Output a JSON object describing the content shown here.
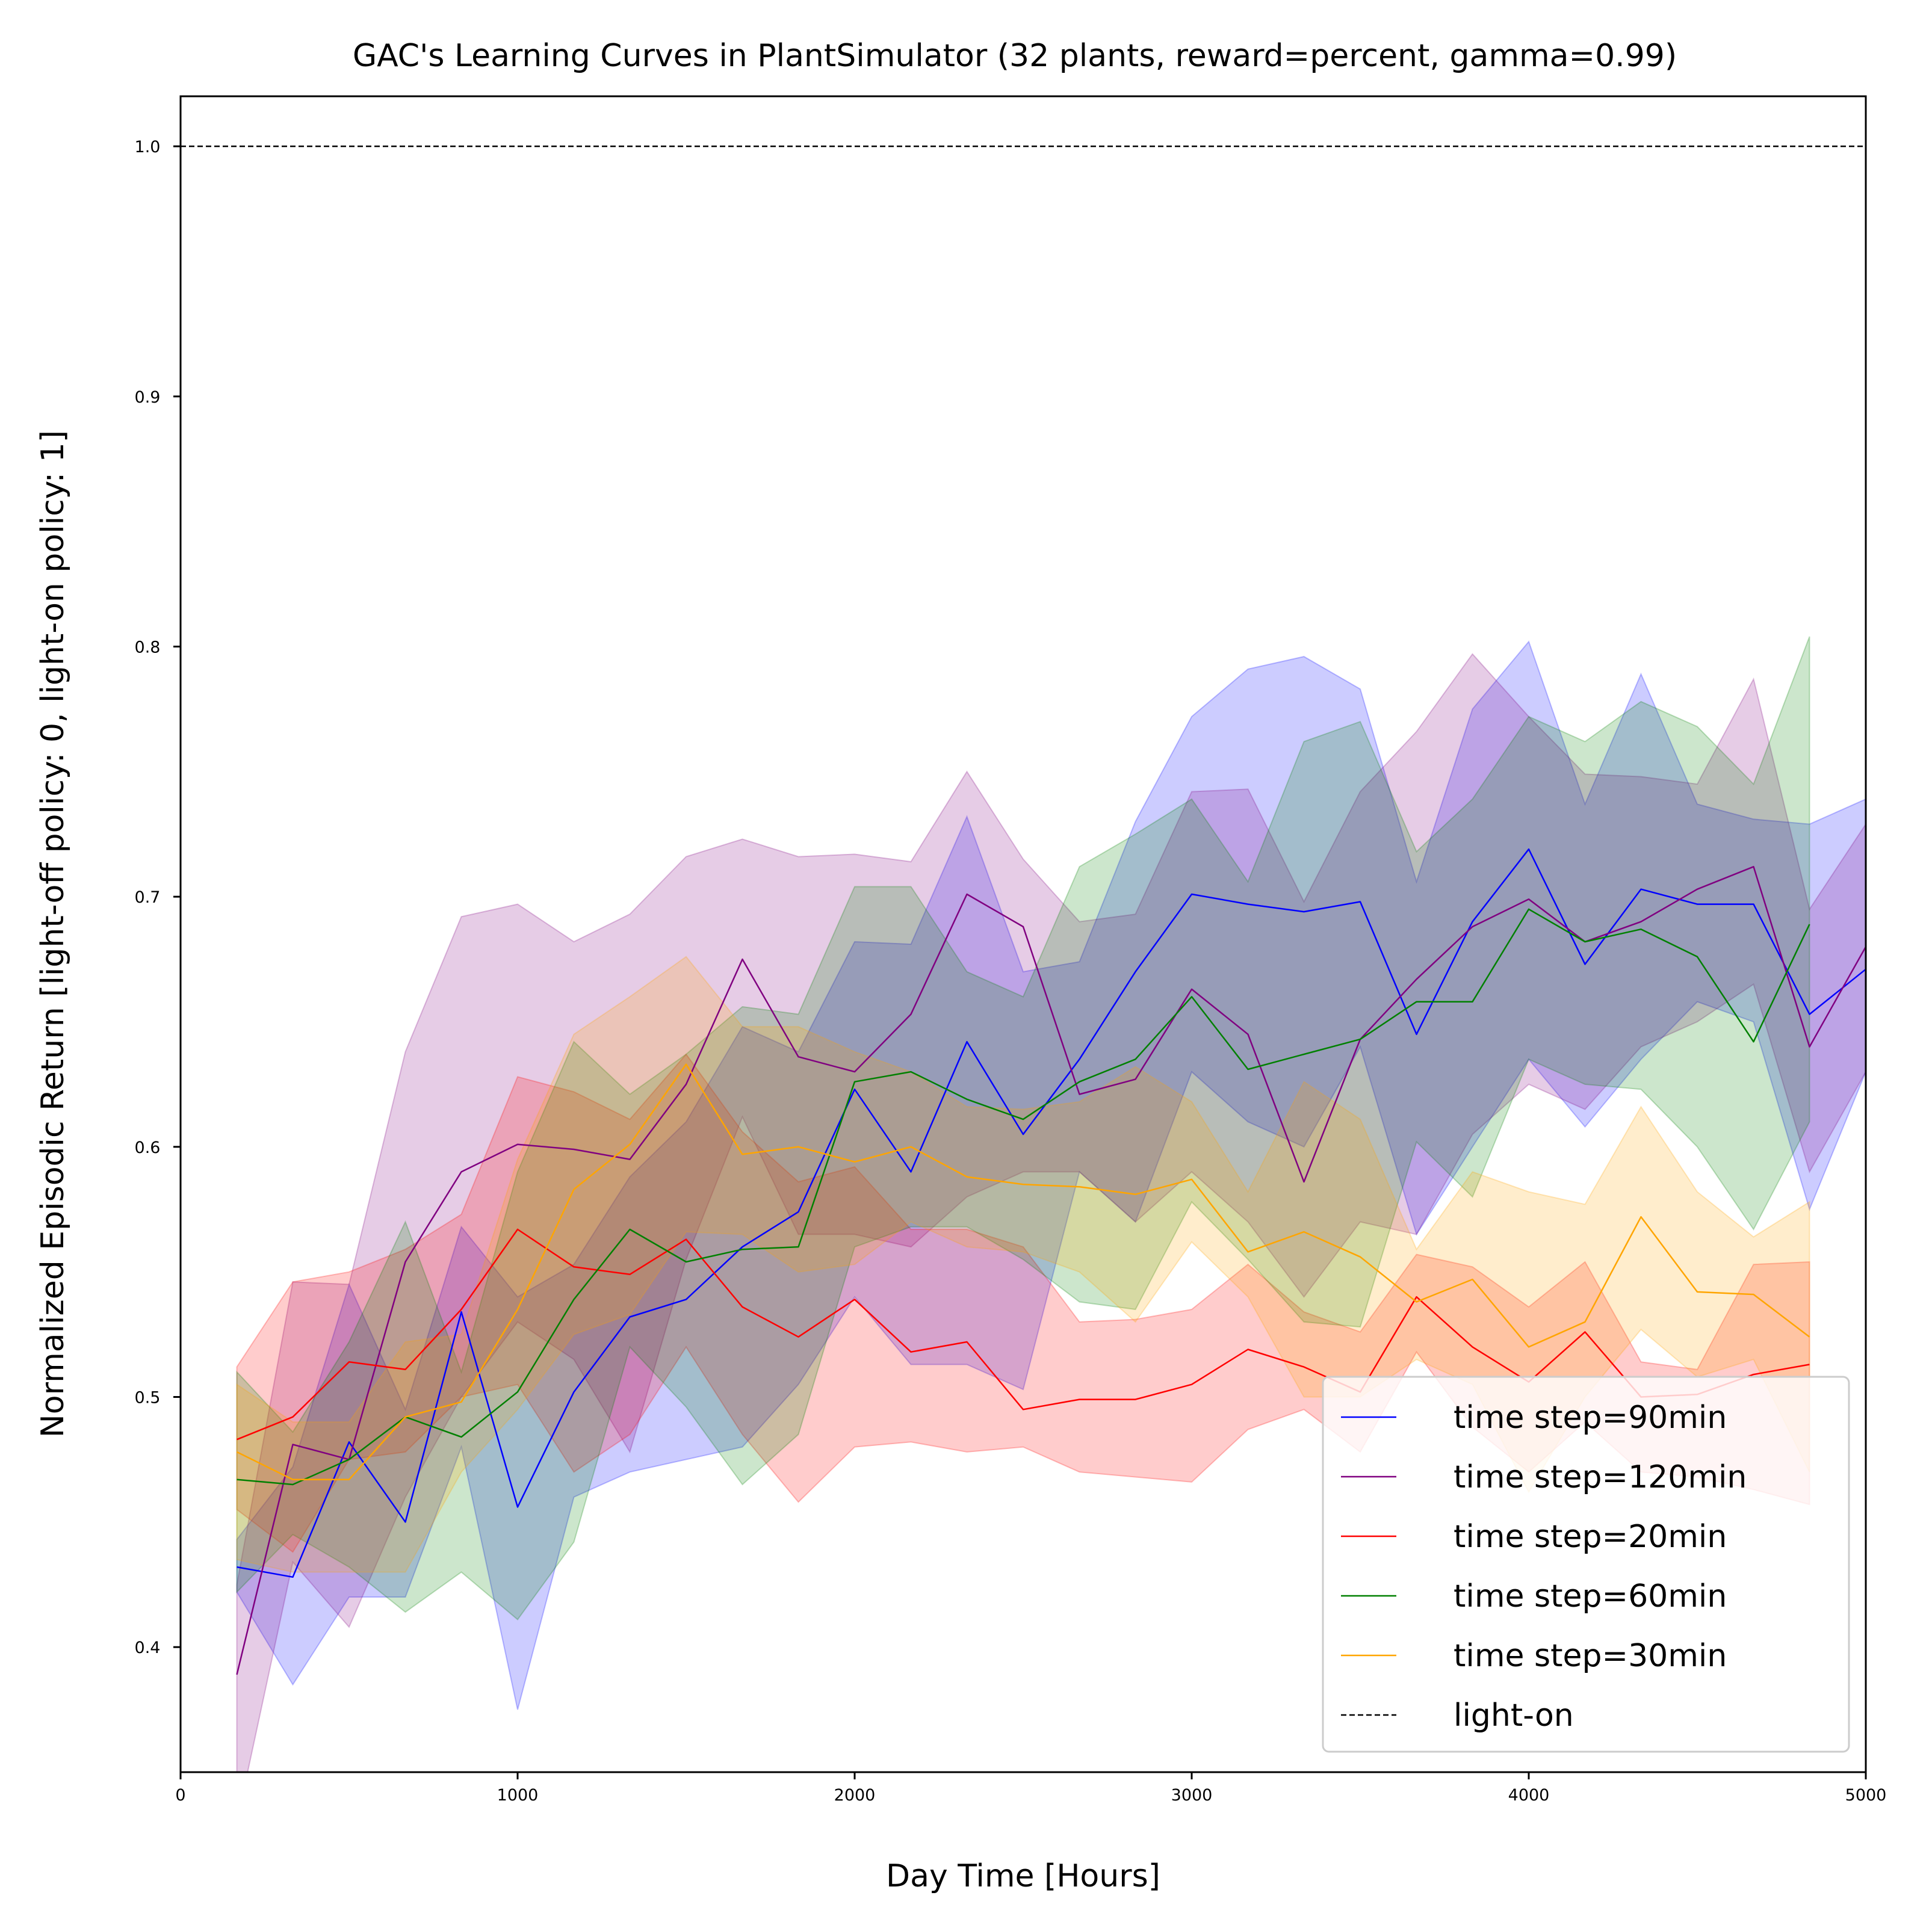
{
  "chart_data": {
    "type": "line",
    "title": "GAC's Learning Curves in PlantSimulator (32 plants, reward=percent, gamma=0.99)",
    "xlabel": "Day Time [Hours]",
    "ylabel": "Normalized Episodic Return [light-off policy: 0, light-on policy: 1]",
    "xlim": [
      0,
      5000
    ],
    "ylim": [
      0.35,
      1.02
    ],
    "xticks": [
      0,
      1000,
      2000,
      3000,
      4000,
      5000
    ],
    "xtick_labels": [
      "0",
      "1000",
      "2000",
      "3000",
      "4000",
      "5000"
    ],
    "yticks": [
      0.4,
      0.5,
      0.6,
      0.7,
      0.8,
      0.9,
      1.0
    ],
    "ytick_labels": [
      "0.4",
      "0.5",
      "0.6",
      "0.7",
      "0.8",
      "0.9",
      "1.0"
    ],
    "grid": false,
    "legend_position": "lower-right",
    "reference_line": {
      "name": "light-on",
      "y": 1.0,
      "color": "#000000",
      "style": "dashed"
    },
    "series": [
      {
        "name": "time step=90min",
        "color": "#0000ff",
        "x": [
          167,
          333,
          500,
          667,
          833,
          1000,
          1167,
          1333,
          1500,
          1667,
          1833,
          2000,
          2167,
          2333,
          2500,
          2667,
          2833,
          3000,
          3167,
          3333,
          3500,
          3667,
          3833,
          4000,
          4167,
          4333,
          4500,
          4667,
          4833,
          5000
        ],
        "y": [
          0.432,
          0.428,
          0.482,
          0.45,
          0.534,
          0.456,
          0.502,
          0.532,
          0.539,
          0.56,
          0.574,
          0.623,
          0.59,
          0.642,
          0.605,
          0.635,
          0.67,
          0.701,
          0.697,
          0.694,
          0.698,
          0.645,
          0.69,
          0.719,
          0.673,
          0.703,
          0.697,
          0.697,
          0.653,
          0.671
        ],
        "lower": [
          0.422,
          0.385,
          0.42,
          0.42,
          0.48,
          0.375,
          0.46,
          0.47,
          0.475,
          0.48,
          0.505,
          0.54,
          0.513,
          0.513,
          0.503,
          0.59,
          0.57,
          0.63,
          0.61,
          0.6,
          0.64,
          0.565,
          0.6,
          0.635,
          0.608,
          0.635,
          0.658,
          0.65,
          0.575,
          0.63
        ],
        "upper": [
          0.443,
          0.472,
          0.545,
          0.495,
          0.568,
          0.54,
          0.553,
          0.588,
          0.61,
          0.648,
          0.638,
          0.682,
          0.681,
          0.732,
          0.67,
          0.674,
          0.73,
          0.772,
          0.791,
          0.796,
          0.783,
          0.706,
          0.775,
          0.802,
          0.737,
          0.789,
          0.737,
          0.731,
          0.729,
          0.739
        ]
      },
      {
        "name": "time step=120min",
        "color": "#800080",
        "x": [
          167,
          333,
          500,
          667,
          833,
          1000,
          1167,
          1333,
          1500,
          1667,
          1833,
          2000,
          2167,
          2333,
          2500,
          2667,
          2833,
          3000,
          3167,
          3333,
          3500,
          3667,
          3833,
          4000,
          4167,
          4333,
          4500,
          4667,
          4833,
          5000
        ],
        "y": [
          0.389,
          0.481,
          0.475,
          0.554,
          0.59,
          0.601,
          0.599,
          0.595,
          0.625,
          0.675,
          0.636,
          0.63,
          0.653,
          0.701,
          0.688,
          0.621,
          0.627,
          0.663,
          0.645,
          0.586,
          0.643,
          0.667,
          0.688,
          0.699,
          0.682,
          0.69,
          0.703,
          0.712,
          0.64,
          0.68
        ],
        "lower": [
          0.33,
          0.434,
          0.408,
          0.46,
          0.5,
          0.53,
          0.515,
          0.478,
          0.555,
          0.612,
          0.565,
          0.565,
          0.56,
          0.58,
          0.59,
          0.59,
          0.57,
          0.59,
          0.57,
          0.54,
          0.57,
          0.565,
          0.605,
          0.625,
          0.615,
          0.64,
          0.65,
          0.665,
          0.59,
          0.63
        ],
        "upper": [
          0.425,
          0.546,
          0.545,
          0.638,
          0.692,
          0.697,
          0.682,
          0.693,
          0.716,
          0.723,
          0.716,
          0.717,
          0.714,
          0.75,
          0.715,
          0.69,
          0.693,
          0.742,
          0.743,
          0.698,
          0.742,
          0.766,
          0.797,
          0.772,
          0.749,
          0.748,
          0.745,
          0.787,
          0.695,
          0.729
        ]
      },
      {
        "name": "time step=20min",
        "color": "#ff0000",
        "x": [
          167,
          333,
          500,
          667,
          833,
          1000,
          1167,
          1333,
          1500,
          1667,
          1833,
          2000,
          2167,
          2333,
          2500,
          2667,
          2833,
          3000,
          3167,
          3333,
          3500,
          3667,
          3833,
          4000,
          4167,
          4333,
          4500,
          4667,
          4833
        ],
        "y": [
          0.483,
          0.492,
          0.514,
          0.511,
          0.535,
          0.567,
          0.552,
          0.549,
          0.563,
          0.536,
          0.524,
          0.539,
          0.518,
          0.522,
          0.495,
          0.499,
          0.499,
          0.505,
          0.519,
          0.512,
          0.502,
          0.54,
          0.52,
          0.506,
          0.526,
          0.5,
          0.501,
          0.509,
          0.513
        ],
        "lower": [
          0.455,
          0.438,
          0.475,
          0.478,
          0.5,
          0.505,
          0.47,
          0.485,
          0.52,
          0.485,
          0.458,
          0.48,
          0.482,
          0.478,
          0.48,
          0.47,
          0.468,
          0.466,
          0.487,
          0.495,
          0.478,
          0.518,
          0.488,
          0.47,
          0.49,
          0.47,
          0.468,
          0.463,
          0.457
        ],
        "upper": [
          0.512,
          0.546,
          0.55,
          0.559,
          0.573,
          0.628,
          0.622,
          0.611,
          0.637,
          0.606,
          0.586,
          0.592,
          0.567,
          0.567,
          0.56,
          0.53,
          0.531,
          0.535,
          0.553,
          0.534,
          0.526,
          0.557,
          0.552,
          0.536,
          0.554,
          0.514,
          0.511,
          0.553,
          0.554
        ]
      },
      {
        "name": "time step=60min",
        "color": "#008000",
        "x": [
          167,
          333,
          500,
          667,
          833,
          1000,
          1167,
          1333,
          1500,
          1667,
          1833,
          2000,
          2167,
          2333,
          2500,
          2667,
          2833,
          3000,
          3167,
          3333,
          3500,
          3667,
          3833,
          4000,
          4167,
          4333,
          4500,
          4667,
          4833
        ],
        "y": [
          0.467,
          0.465,
          0.475,
          0.492,
          0.484,
          0.502,
          0.539,
          0.567,
          0.554,
          0.559,
          0.56,
          0.626,
          0.63,
          0.619,
          0.611,
          0.626,
          0.635,
          0.66,
          0.631,
          0.637,
          0.643,
          0.658,
          0.658,
          0.695,
          0.682,
          0.687,
          0.676,
          0.642,
          0.689
        ],
        "lower": [
          0.422,
          0.445,
          0.432,
          0.414,
          0.43,
          0.411,
          0.442,
          0.52,
          0.496,
          0.465,
          0.485,
          0.56,
          0.568,
          0.568,
          0.555,
          0.538,
          0.535,
          0.578,
          0.555,
          0.53,
          0.528,
          0.602,
          0.58,
          0.635,
          0.625,
          0.623,
          0.6,
          0.567,
          0.61
        ],
        "upper": [
          0.51,
          0.486,
          0.522,
          0.57,
          0.51,
          0.59,
          0.642,
          0.621,
          0.637,
          0.656,
          0.653,
          0.704,
          0.704,
          0.67,
          0.66,
          0.712,
          0.725,
          0.739,
          0.706,
          0.762,
          0.77,
          0.718,
          0.739,
          0.772,
          0.762,
          0.778,
          0.768,
          0.745,
          0.804
        ]
      },
      {
        "name": "time step=30min",
        "color": "#ffa500",
        "x": [
          167,
          333,
          500,
          667,
          833,
          1000,
          1167,
          1333,
          1500,
          1667,
          1833,
          2000,
          2167,
          2333,
          2500,
          2667,
          2833,
          3000,
          3167,
          3333,
          3500,
          3667,
          3833,
          4000,
          4167,
          4333,
          4500,
          4667,
          4833
        ],
        "y": [
          0.478,
          0.467,
          0.467,
          0.492,
          0.498,
          0.535,
          0.583,
          0.601,
          0.633,
          0.597,
          0.6,
          0.594,
          0.6,
          0.588,
          0.585,
          0.584,
          0.581,
          0.587,
          0.558,
          0.566,
          0.556,
          0.538,
          0.547,
          0.52,
          0.53,
          0.572,
          0.542,
          0.541,
          0.524
        ],
        "lower": [
          0.435,
          0.43,
          0.43,
          0.43,
          0.47,
          0.495,
          0.525,
          0.533,
          0.566,
          0.565,
          0.55,
          0.553,
          0.57,
          0.56,
          0.558,
          0.55,
          0.53,
          0.562,
          0.54,
          0.5,
          0.5,
          0.515,
          0.505,
          0.462,
          0.5,
          0.527,
          0.508,
          0.515,
          0.47
        ],
        "upper": [
          0.505,
          0.49,
          0.49,
          0.522,
          0.525,
          0.595,
          0.645,
          0.66,
          0.676,
          0.648,
          0.648,
          0.638,
          0.63,
          0.616,
          0.615,
          0.618,
          0.632,
          0.618,
          0.582,
          0.626,
          0.611,
          0.559,
          0.59,
          0.582,
          0.577,
          0.616,
          0.582,
          0.564,
          0.578
        ]
      }
    ]
  }
}
